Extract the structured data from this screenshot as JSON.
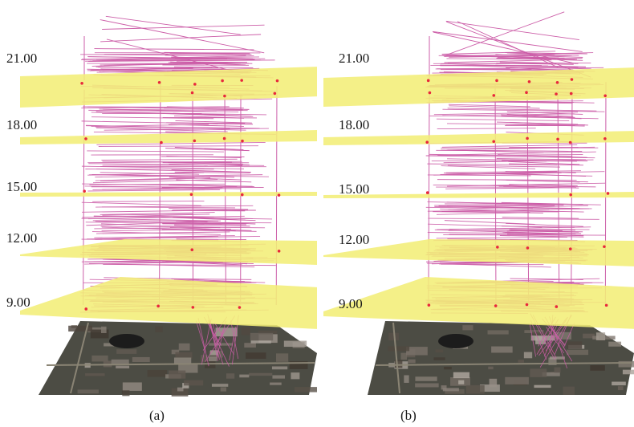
{
  "colors": {
    "plane": "#f2ee78",
    "trajectory": "#cc5ea8",
    "stay_point": "#e8283c",
    "basemap": "#4c4c44"
  },
  "time_axis": {
    "labels": [
      "21.00",
      "18.00",
      "15.00",
      "12.00",
      "9.00"
    ]
  },
  "panels": [
    {
      "id": "a",
      "caption": "(a)"
    },
    {
      "id": "b",
      "caption": "(b)"
    }
  ]
}
